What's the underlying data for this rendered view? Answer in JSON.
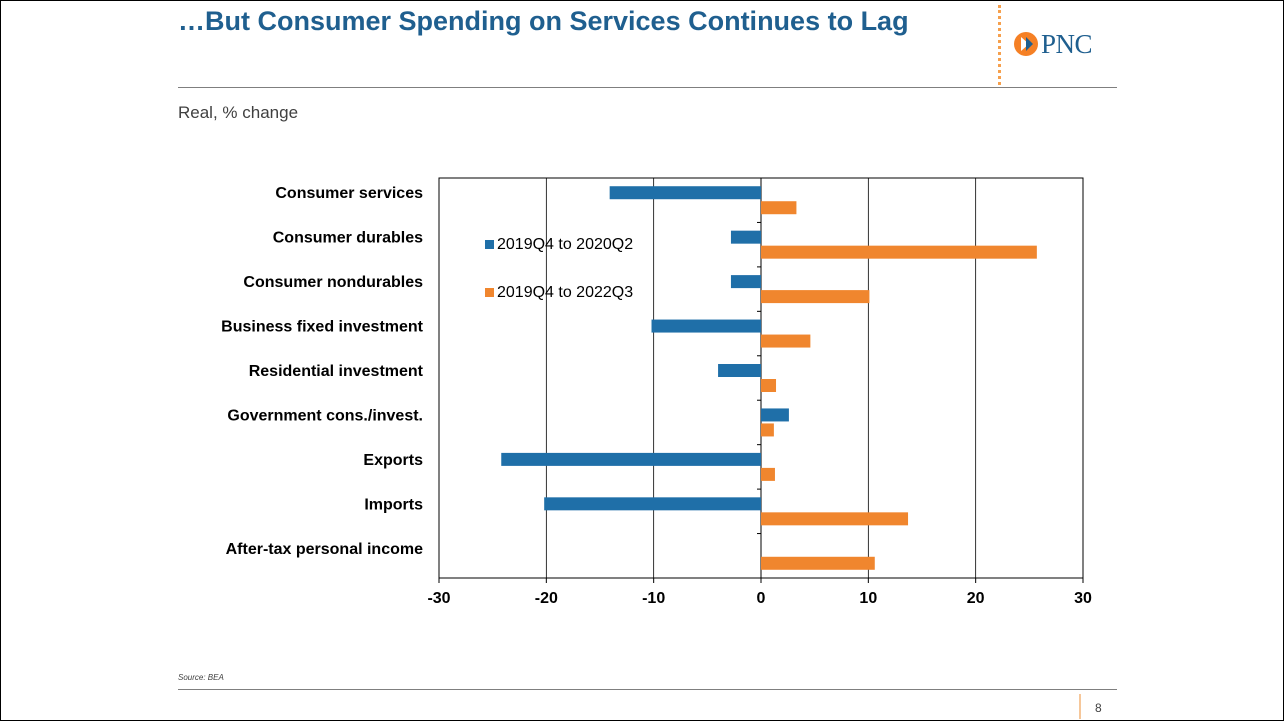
{
  "slide": {
    "title": "…But Consumer Spending on Services Continues to Lag",
    "subtitle": "Real, % change",
    "source": "Source: BEA",
    "page_number": "8",
    "logo_text": "PNC"
  },
  "colors": {
    "series1": "#1f6fa8",
    "series2": "#f0862e",
    "title": "#1f5f8f",
    "logo_mark": "#f58025"
  },
  "chart_data": {
    "type": "bar",
    "orientation": "horizontal",
    "title": "",
    "xlabel": "",
    "ylabel": "",
    "xlim": [
      -30,
      30
    ],
    "xticks": [
      -30,
      -20,
      -10,
      0,
      10,
      20,
      30
    ],
    "grid": true,
    "legend_position": "upper-left inside plot",
    "categories": [
      "Consumer services",
      "Consumer durables",
      "Consumer nondurables",
      "Business fixed investment",
      "Residential investment",
      "Government cons./invest.",
      "Exports",
      "Imports",
      "After-tax personal income"
    ],
    "series": [
      {
        "name": "2019Q4 to 2020Q2",
        "values": [
          -14.1,
          -2.8,
          -2.8,
          -10.2,
          -4.0,
          2.6,
          -24.2,
          -20.2,
          null
        ]
      },
      {
        "name": "2019Q4 to 2022Q3",
        "values": [
          3.3,
          25.7,
          10.1,
          4.6,
          1.4,
          1.2,
          1.3,
          13.7,
          10.6
        ]
      }
    ]
  }
}
